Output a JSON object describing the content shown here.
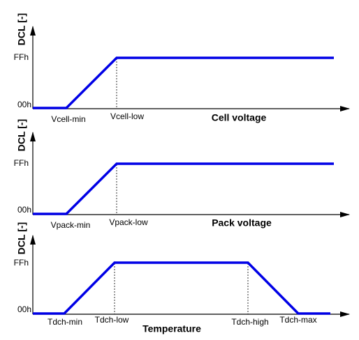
{
  "panels": [
    {
      "y_label": "DCL [-]",
      "y_high": "FFh",
      "y_low": "00h",
      "x_points": [
        "Vcell-min",
        "Vcell-low"
      ],
      "x_title": "Cell voltage"
    },
    {
      "y_label": "DCL [-]",
      "y_high": "FFh",
      "y_low": "00h",
      "x_points": [
        "Vpack-min",
        "Vpack-low"
      ],
      "x_title": "Pack voltage"
    },
    {
      "y_label": "DCL [-]",
      "y_high": "FFh",
      "y_low": "00h",
      "x_points": [
        "Tdch-min",
        "Tdch-low",
        "Tdch-high",
        "Tdch-max"
      ],
      "x_title": "Temperature"
    }
  ]
}
